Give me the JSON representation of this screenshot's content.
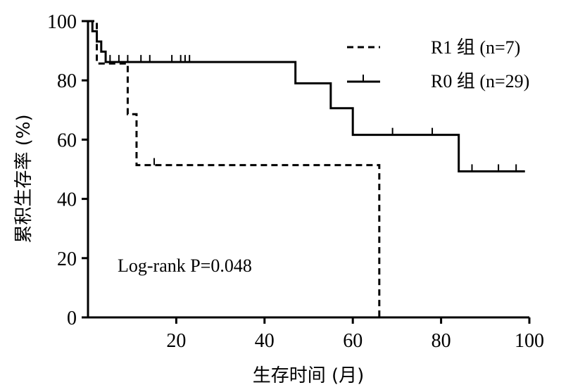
{
  "chart_data": {
    "type": "line",
    "subtype": "kaplan-meier",
    "title": "",
    "xlabel": "生存时间 (月)",
    "ylabel": "累积生存率 (%)",
    "xlim": [
      0,
      100
    ],
    "ylim": [
      0,
      100
    ],
    "x_ticks": [
      20,
      40,
      60,
      80,
      100
    ],
    "y_ticks": [
      0,
      20,
      40,
      60,
      80,
      100
    ],
    "annotation": "Log-rank P=0.048",
    "legend_position": "top-right",
    "series": [
      {
        "name": "R1 组 (n=7)",
        "style": "dashed",
        "steps": [
          [
            0,
            100
          ],
          [
            2,
            85.7
          ],
          [
            9,
            68.6
          ],
          [
            11,
            51.4
          ],
          [
            66,
            0
          ]
        ],
        "x_end": 66,
        "censored": [
          [
            15,
            51.4
          ]
        ]
      },
      {
        "name": "R0 组 (n=29)",
        "style": "solid",
        "steps": [
          [
            0,
            100
          ],
          [
            1,
            96.6
          ],
          [
            2,
            93.1
          ],
          [
            3,
            89.7
          ],
          [
            4,
            86.2
          ],
          [
            47,
            79
          ],
          [
            55,
            70.6
          ],
          [
            60,
            61.6
          ],
          [
            84,
            49.3
          ]
        ],
        "x_end": 99,
        "censored": [
          [
            5,
            86.2
          ],
          [
            7,
            86.2
          ],
          [
            9,
            86.2
          ],
          [
            12,
            86.2
          ],
          [
            14,
            86.2
          ],
          [
            19,
            86.2
          ],
          [
            21,
            86.2
          ],
          [
            22,
            86.2
          ],
          [
            23,
            86.2
          ],
          [
            69,
            61.6
          ],
          [
            78,
            61.6
          ],
          [
            87,
            49.3
          ],
          [
            93,
            49.3
          ],
          [
            97,
            49.3
          ]
        ]
      }
    ]
  }
}
